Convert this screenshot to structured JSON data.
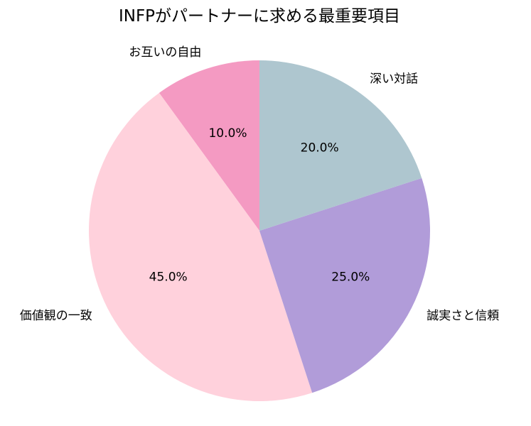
{
  "chart_data": {
    "type": "pie",
    "title": "INFPがパートナーに求める最重要項目",
    "start_angle_deg": 90,
    "direction": "counterclockwise",
    "slices": [
      {
        "label": "お互いの自由",
        "value": 10.0,
        "pct_label": "10.0%",
        "color": "#f49ac2"
      },
      {
        "label": "価値観の一致",
        "value": 45.0,
        "pct_label": "45.0%",
        "color": "#ffd1dc"
      },
      {
        "label": "誠実さと信頼",
        "value": 25.0,
        "pct_label": "25.0%",
        "color": "#b19cd9"
      },
      {
        "label": "深い対話",
        "value": 20.0,
        "pct_label": "20.0%",
        "color": "#aec6cf"
      }
    ]
  }
}
